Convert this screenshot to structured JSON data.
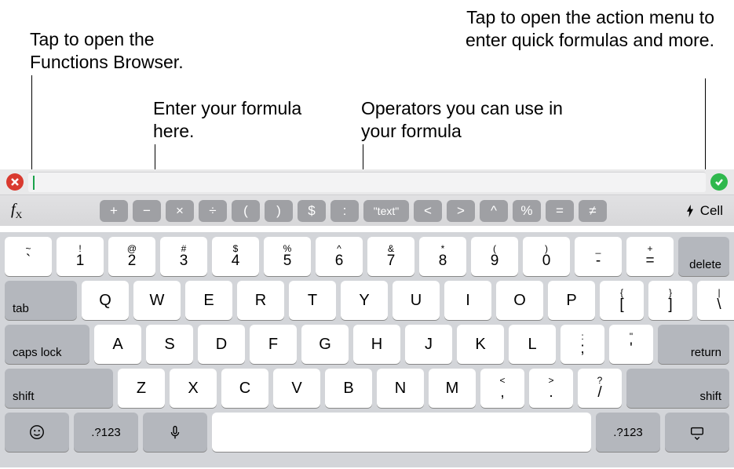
{
  "callouts": {
    "fx": "Tap to open the Functions Browser.",
    "formula": "Enter your formula here.",
    "operators": "Operators you can use in your formula",
    "action": "Tap to open the action menu to enter quick formulas and more."
  },
  "operators": [
    "+",
    "−",
    "×",
    "÷",
    "(",
    ")",
    "$",
    ":",
    "\"text\"",
    "<",
    ">",
    "^",
    "%",
    "=",
    "≠"
  ],
  "cell_label": "Cell",
  "keyboard": {
    "row1": [
      {
        "sup": "~",
        "main": "`"
      },
      {
        "sup": "!",
        "main": "1"
      },
      {
        "sup": "@",
        "main": "2"
      },
      {
        "sup": "#",
        "main": "3"
      },
      {
        "sup": "$",
        "main": "4"
      },
      {
        "sup": "%",
        "main": "5"
      },
      {
        "sup": "^",
        "main": "6"
      },
      {
        "sup": "&",
        "main": "7"
      },
      {
        "sup": "*",
        "main": "8"
      },
      {
        "sup": "(",
        "main": "9"
      },
      {
        "sup": ")",
        "main": "0"
      },
      {
        "sup": "_",
        "main": "-"
      },
      {
        "sup": "+",
        "main": "="
      }
    ],
    "delete": "delete",
    "tab": "tab",
    "row2": [
      "Q",
      "W",
      "E",
      "R",
      "T",
      "Y",
      "U",
      "I",
      "O",
      "P"
    ],
    "row2_tail": [
      {
        "sup": "{",
        "main": "["
      },
      {
        "sup": "}",
        "main": "]"
      },
      {
        "sup": "|",
        "main": "\\"
      }
    ],
    "caps": "caps lock",
    "row3": [
      "A",
      "S",
      "D",
      "F",
      "G",
      "H",
      "J",
      "K",
      "L"
    ],
    "row3_tail": [
      {
        "sup": ":",
        "main": ";"
      },
      {
        "sup": "\"",
        "main": "'"
      }
    ],
    "return": "return",
    "shift": "shift",
    "row4": [
      "Z",
      "X",
      "C",
      "V",
      "B",
      "N",
      "M"
    ],
    "row4_tail": [
      {
        "sup": "<",
        "main": ","
      },
      {
        "sup": ">",
        "main": "."
      },
      {
        "sup": "?",
        "main": "/"
      }
    ],
    "numtoggle": ".?123"
  },
  "colors": {
    "op_bg": "#9fa0a4",
    "key_grey": "#b4b7bd",
    "kbd_bg": "#d3d5d9",
    "cancel": "#d93a2f",
    "confirm": "#2fb84d",
    "cursor": "#1aa24b"
  }
}
